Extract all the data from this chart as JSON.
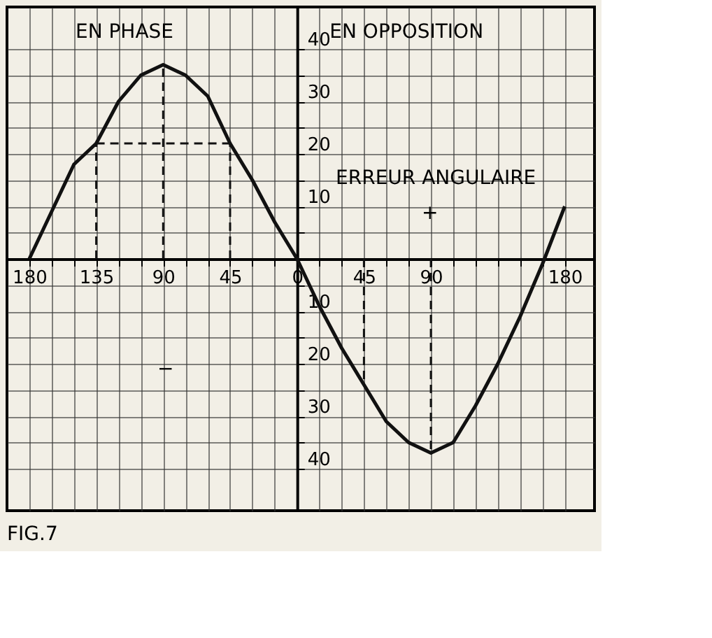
{
  "chart_data": {
    "type": "line",
    "x": [
      -180,
      -165,
      -150,
      -135,
      -120,
      -105,
      -90,
      -75,
      -60,
      -45,
      -30,
      -15,
      0,
      15,
      30,
      45,
      60,
      75,
      90,
      105,
      120,
      135,
      150,
      165,
      180
    ],
    "series": [
      {
        "color": "#111111",
        "values": [
          0,
          9,
          18,
          22,
          30,
          35,
          37,
          35,
          31,
          22,
          15,
          7,
          0,
          -9,
          -17,
          -24,
          -31,
          -35,
          -37,
          -35,
          -28,
          -20,
          -11,
          -1,
          10
        ]
      },
      {
        "color": "#111111",
        "line_style": "dashed",
        "x": [
          -135,
          -135
        ],
        "values": [
          0,
          22
        ]
      },
      {
        "color": "#111111",
        "line_style": "dashed",
        "x": [
          -135,
          -45
        ],
        "values": [
          22,
          22
        ]
      },
      {
        "color": "#111111",
        "line_style": "dashed",
        "x": [
          -45,
          -45
        ],
        "values": [
          0,
          22
        ]
      },
      {
        "color": "#111111",
        "line_style": "dashed",
        "x": [
          -90,
          -90
        ],
        "values": [
          0,
          37
        ]
      },
      {
        "color": "#111111",
        "line_style": "dashed",
        "x": [
          45,
          45
        ],
        "values": [
          0,
          -24
        ]
      },
      {
        "color": "#111111",
        "line_style": "dashed",
        "x": [
          90,
          90
        ],
        "values": [
          0,
          -37
        ]
      }
    ],
    "xlim": [
      -195,
      200
    ],
    "ylim": [
      -48,
      48
    ],
    "xticks": [
      {
        "value": -180,
        "label": "180"
      },
      {
        "value": -165,
        "label": null
      },
      {
        "value": -150,
        "label": null
      },
      {
        "value": -135,
        "label": "135"
      },
      {
        "value": -120,
        "label": null
      },
      {
        "value": -105,
        "label": null
      },
      {
        "value": -90,
        "label": "90"
      },
      {
        "value": -75,
        "label": null
      },
      {
        "value": -60,
        "label": null
      },
      {
        "value": -45,
        "label": "45"
      },
      {
        "value": -30,
        "label": null
      },
      {
        "value": -15,
        "label": null
      },
      0,
      {
        "value": 15,
        "label": null
      },
      {
        "value": 30,
        "label": null
      },
      {
        "value": 45,
        "label": "45"
      },
      {
        "value": 60,
        "label": null
      },
      {
        "value": 75,
        "label": null
      },
      {
        "value": 90,
        "label": "90"
      },
      {
        "value": 105,
        "label": null
      },
      {
        "value": 120,
        "label": null
      },
      {
        "value": 135,
        "label": null
      },
      {
        "value": 150,
        "label": null
      },
      {
        "value": 165,
        "label": null
      },
      {
        "value": 180,
        "label": "180"
      }
    ],
    "yticks": [
      {
        "value": -40,
        "label": "40"
      },
      {
        "value": -35,
        "label": null
      },
      {
        "value": -30,
        "label": "30"
      },
      {
        "value": -25,
        "label": null
      },
      {
        "value": -20,
        "label": "20"
      },
      {
        "value": -15,
        "label": null
      },
      {
        "value": -10,
        "label": "10"
      },
      {
        "value": -5,
        "label": null
      },
      {
        "value": 0,
        "label": null
      },
      {
        "value": 5,
        "label": null
      },
      10,
      {
        "value": 15,
        "label": null
      },
      20,
      {
        "value": 25,
        "label": null
      },
      30,
      {
        "value": 35,
        "label": null
      },
      40
    ],
    "grid": true,
    "marker": "none",
    "line_style": "solid",
    "annotations": [
      "EN PHASE",
      "EN OPPOSITION",
      "ERREUR ANGULAIRE",
      "+",
      "−",
      "FIG.7"
    ]
  }
}
